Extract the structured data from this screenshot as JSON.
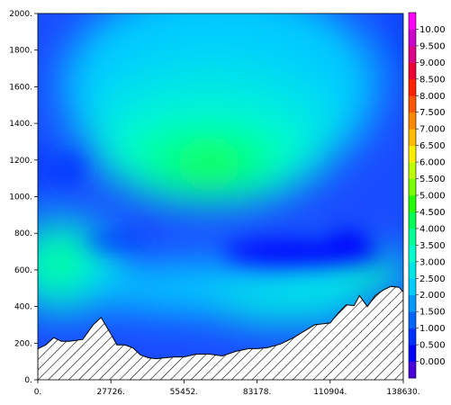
{
  "chart_data": {
    "type": "heatmap",
    "title": "",
    "xlabel": "",
    "ylabel": "",
    "xlim": [
      0,
      138630
    ],
    "ylim": [
      0,
      2000
    ],
    "x_tick_labels": [
      "0.",
      "27726.",
      "55452.",
      "83178.",
      "110904.",
      "138630."
    ],
    "x_tick_values": [
      0,
      27726,
      55452,
      83178,
      110904,
      138630
    ],
    "y_tick_labels": [
      "0.",
      "200.",
      "400.",
      "600.",
      "800.",
      "1000.",
      "1200.",
      "1400.",
      "1600.",
      "1800.",
      "2000."
    ],
    "y_tick_values": [
      0,
      200,
      400,
      600,
      800,
      1000,
      1200,
      1400,
      1600,
      1800,
      2000
    ],
    "colorbar": {
      "levels": [
        "0.000",
        "0.500",
        "1.000",
        "1.500",
        "2.000",
        "2.500",
        "3.000",
        "3.500",
        "4.000",
        "4.500",
        "5.000",
        "5.500",
        "6.000",
        "6.500",
        "7.000",
        "7.500",
        "8.000",
        "8.500",
        "9.000",
        "9.500",
        "10.00"
      ],
      "colors": [
        "#4a00d8",
        "#0000ff",
        "#0032ff",
        "#0066ff",
        "#0099ff",
        "#00ccff",
        "#00e6e6",
        "#00ffcc",
        "#00ff99",
        "#00ff55",
        "#22ff00",
        "#77ff00",
        "#bbff00",
        "#ffee00",
        "#ffbb00",
        "#ff8800",
        "#ff5500",
        "#ff2200",
        "#ee0033",
        "#dd0088",
        "#cc00cc",
        "#ff00ff"
      ]
    },
    "terrain_profile": {
      "x": [
        0,
        3000,
        6000,
        9000,
        12000,
        17000,
        21000,
        24000,
        27726,
        30000,
        33000,
        36000,
        39000,
        42000,
        45000,
        48000,
        52000,
        55452,
        60000,
        65000,
        70000,
        75000,
        80000,
        83178,
        87000,
        92000,
        97000,
        101000,
        105000,
        110904,
        114000,
        117000,
        120000,
        122000,
        125000,
        128000,
        131000,
        134000,
        137000,
        138630
      ],
      "y": [
        170,
        190,
        230,
        210,
        210,
        220,
        300,
        340,
        250,
        190,
        190,
        175,
        135,
        120,
        115,
        120,
        125,
        125,
        140,
        140,
        130,
        155,
        170,
        170,
        175,
        195,
        230,
        265,
        300,
        310,
        365,
        410,
        405,
        460,
        400,
        460,
        490,
        510,
        505,
        480
      ]
    },
    "field_centers": [
      {
        "x": 62000,
        "y": 1180,
        "value": 4.5
      },
      {
        "x": 65000,
        "y": 1220,
        "value": 4.7
      },
      {
        "x": 8000,
        "y": 650,
        "value": 4.0
      },
      {
        "x": 3000,
        "y": 1150,
        "value": 1.0
      },
      {
        "x": 116000,
        "y": 760,
        "value": 0.3
      },
      {
        "x": 95000,
        "y": 640,
        "value": 0.6
      }
    ]
  }
}
